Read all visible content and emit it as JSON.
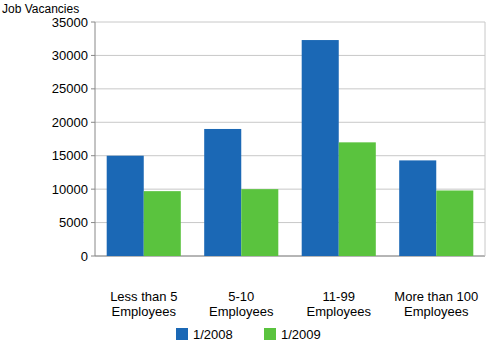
{
  "chart_data": {
    "type": "bar",
    "y_label": "Job Vacancies",
    "categories": [
      "Less than 5 Employees",
      "5-10 Employees",
      "11-99 Employees",
      "More than 100 Employees"
    ],
    "series": [
      {
        "name": "1/2008",
        "color": "#1b68b5",
        "values": [
          15000,
          19000,
          32300,
          14300
        ]
      },
      {
        "name": "1/2009",
        "color": "#5ac33e",
        "values": [
          9700,
          10000,
          17000,
          9800
        ]
      }
    ],
    "ylim": [
      0,
      35000
    ],
    "yticks": [
      0,
      5000,
      10000,
      15000,
      20000,
      25000,
      30000,
      35000
    ],
    "grid": true,
    "legend": "bottom"
  }
}
